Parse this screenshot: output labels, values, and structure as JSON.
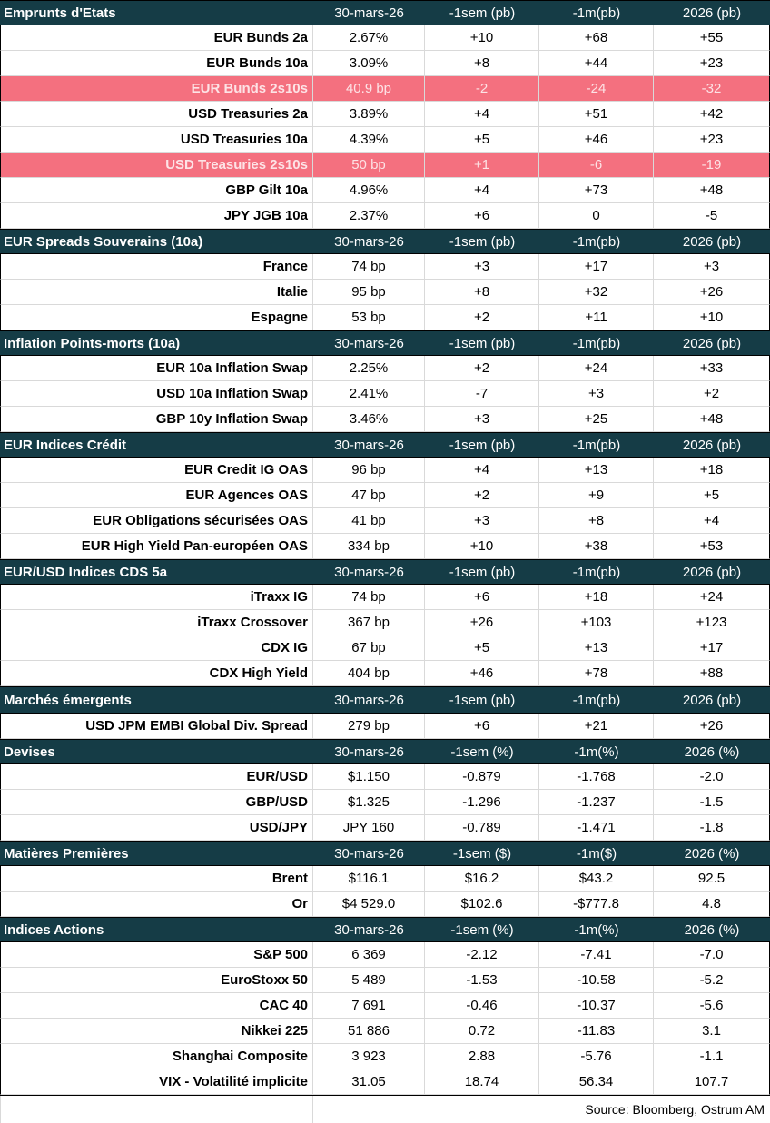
{
  "sections": [
    {
      "title": "Emprunts d'Etats",
      "headers": [
        "30-mars-26",
        "-1sem (pb)",
        "-1m(pb)",
        "2026 (pb)"
      ],
      "rows": [
        {
          "label": "EUR Bunds 2a",
          "values": [
            "2.67%",
            "+10",
            "+68",
            "+55"
          ]
        },
        {
          "label": "EUR Bunds 10a",
          "values": [
            "3.09%",
            "+8",
            "+44",
            "+23"
          ]
        },
        {
          "label": "EUR Bunds 2s10s",
          "values": [
            "40.9 bp",
            "-2",
            "-24",
            "-32"
          ],
          "highlight": true
        },
        {
          "label": "USD Treasuries 2a",
          "values": [
            "3.89%",
            "+4",
            "+51",
            "+42"
          ]
        },
        {
          "label": "USD Treasuries 10a",
          "values": [
            "4.39%",
            "+5",
            "+46",
            "+23"
          ]
        },
        {
          "label": "USD Treasuries 2s10s",
          "values": [
            "50 bp",
            "+1",
            "-6",
            "-19"
          ],
          "highlight": true
        },
        {
          "label": "GBP Gilt 10a",
          "values": [
            "4.96%",
            "+4",
            "+73",
            "+48"
          ]
        },
        {
          "label": "JPY JGB  10a",
          "values": [
            "2.37%",
            "+6",
            "0",
            "-5"
          ]
        }
      ]
    },
    {
      "title": "EUR Spreads Souverains (10a)",
      "headers": [
        "30-mars-26",
        "-1sem (pb)",
        "-1m(pb)",
        "2026 (pb)"
      ],
      "rows": [
        {
          "label": "France",
          "values": [
            "74 bp",
            "+3",
            "+17",
            "+3"
          ]
        },
        {
          "label": "Italie",
          "values": [
            "95 bp",
            "+8",
            "+32",
            "+26"
          ]
        },
        {
          "label": "Espagne",
          "values": [
            "53 bp",
            "+2",
            "+11",
            "+10"
          ]
        }
      ]
    },
    {
      "title": " Inflation Points-morts (10a)",
      "headers": [
        "30-mars-26",
        "-1sem (pb)",
        "-1m(pb)",
        "2026 (pb)"
      ],
      "rows": [
        {
          "label": "EUR 10a Inflation Swap",
          "values": [
            "2.25%",
            "+2",
            "+24",
            "+33"
          ]
        },
        {
          "label": "USD 10a Inflation Swap",
          "values": [
            "2.41%",
            "-7",
            "+3",
            "+2"
          ]
        },
        {
          "label": "GBP 10y Inflation Swap",
          "values": [
            "3.46%",
            "+3",
            "+25",
            "+48"
          ]
        }
      ]
    },
    {
      "title": "EUR Indices Crédit",
      "headers": [
        "30-mars-26",
        "-1sem (pb)",
        "-1m(pb)",
        "2026 (pb)"
      ],
      "rows": [
        {
          "label": "EUR Credit IG OAS",
          "values": [
            "96 bp",
            "+4",
            "+13",
            "+18"
          ]
        },
        {
          "label": "EUR Agences OAS",
          "values": [
            "47 bp",
            "+2",
            "+9",
            "+5"
          ]
        },
        {
          "label": "EUR Obligations sécurisées OAS",
          "values": [
            "41 bp",
            "+3",
            "+8",
            "+4"
          ]
        },
        {
          "label": "EUR High Yield Pan-européen OAS",
          "values": [
            "334 bp",
            "+10",
            "+38",
            "+53"
          ]
        }
      ]
    },
    {
      "title": "EUR/USD Indices CDS 5a",
      "headers": [
        "30-mars-26",
        "-1sem (pb)",
        "-1m(pb)",
        "2026 (pb)"
      ],
      "rows": [
        {
          "label": "iTraxx IG",
          "values": [
            "74 bp",
            "+6",
            "+18",
            "+24"
          ]
        },
        {
          "label": "iTraxx Crossover",
          "values": [
            "367 bp",
            "+26",
            "+103",
            "+123"
          ]
        },
        {
          "label": "CDX IG",
          "values": [
            "67 bp",
            "+5",
            "+13",
            "+17"
          ]
        },
        {
          "label": "CDX High Yield",
          "values": [
            "404 bp",
            "+46",
            "+78",
            "+88"
          ]
        }
      ]
    },
    {
      "title": "Marchés émergents",
      "headers": [
        "30-mars-26",
        "-1sem (pb)",
        "-1m(pb)",
        "2026 (pb)"
      ],
      "rows": [
        {
          "label": "USD JPM EMBI Global Div. Spread",
          "values": [
            "279 bp",
            "+6",
            "+21",
            "+26"
          ]
        }
      ]
    },
    {
      "title": "Devises",
      "headers": [
        "30-mars-26",
        "-1sem (%)",
        "-1m(%)",
        "2026 (%)"
      ],
      "rows": [
        {
          "label": "EUR/USD",
          "values": [
            "$1.150",
            "-0.879",
            "-1.768",
            "-2.0"
          ]
        },
        {
          "label": "GBP/USD",
          "values": [
            "$1.325",
            "-1.296",
            "-1.237",
            "-1.5"
          ]
        },
        {
          "label": "USD/JPY",
          "values": [
            "JPY 160",
            "-0.789",
            "-1.471",
            "-1.8"
          ]
        }
      ]
    },
    {
      "title": "Matières Premières",
      "headers": [
        "30-mars-26",
        "-1sem ($)",
        "-1m($)",
        "2026 (%)"
      ],
      "rows": [
        {
          "label": "Brent",
          "values": [
            "$116.1",
            "$16.2",
            "$43.2",
            "92.5"
          ]
        },
        {
          "label": "Or",
          "values": [
            "$4 529.0",
            "$102.6",
            "-$777.8",
            "4.8"
          ]
        }
      ]
    },
    {
      "title": "Indices Actions",
      "headers": [
        "30-mars-26",
        "-1sem (%)",
        "-1m(%)",
        "2026 (%)"
      ],
      "rows": [
        {
          "label": "S&P 500",
          "values": [
            "6 369",
            "-2.12",
            "-7.41",
            "-7.0"
          ]
        },
        {
          "label": "EuroStoxx 50",
          "values": [
            "5 489",
            "-1.53",
            "-10.58",
            "-5.2"
          ]
        },
        {
          "label": "CAC 40",
          "values": [
            "7 691",
            "-0.46",
            "-10.37",
            "-5.6"
          ]
        },
        {
          "label": "Nikkei 225",
          "values": [
            "51 886",
            "0.72",
            "-11.83",
            "3.1"
          ]
        },
        {
          "label": "Shanghai Composite",
          "values": [
            "3 923",
            "2.88",
            "-5.76",
            "-1.1"
          ]
        },
        {
          "label": "VIX - Volatilité implicite",
          "values": [
            "31.05",
            "18.74",
            "56.34",
            "107.7"
          ]
        }
      ]
    }
  ],
  "footer": {
    "source": "Source: Bloomberg, Ostrum AM"
  }
}
